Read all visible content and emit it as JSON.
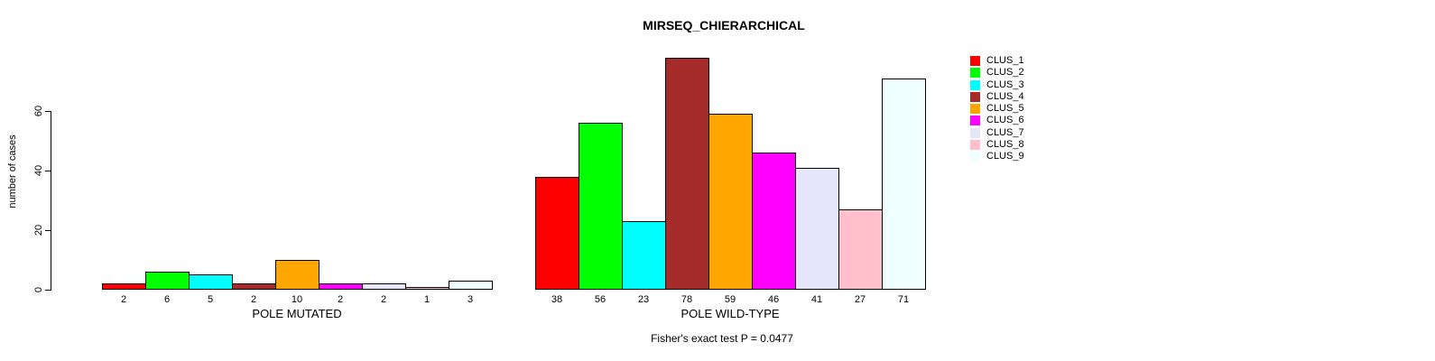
{
  "chart_data": {
    "type": "bar",
    "title": "MIRSEQ_CHIERARCHICAL",
    "ylabel": "number of cases",
    "y_ticks": [
      0,
      20,
      40,
      60
    ],
    "ylim": [
      0,
      78
    ],
    "grid": false,
    "legend_position": "right",
    "bar_border_color": "#000000",
    "series": [
      {
        "name": "CLUS_1",
        "color": "#FF0000"
      },
      {
        "name": "CLUS_2",
        "color": "#00FF00"
      },
      {
        "name": "CLUS_3",
        "color": "#00FFFF"
      },
      {
        "name": "CLUS_4",
        "color": "#A52A2A"
      },
      {
        "name": "CLUS_5",
        "color": "#FFA500"
      },
      {
        "name": "CLUS_6",
        "color": "#FF00FF"
      },
      {
        "name": "CLUS_7",
        "color": "#E6E6FA"
      },
      {
        "name": "CLUS_8",
        "color": "#FFC0CB"
      },
      {
        "name": "CLUS_9",
        "color": "#F0FFFF"
      }
    ],
    "groups": [
      {
        "label": "POLE MUTATED",
        "values": [
          2,
          6,
          5,
          2,
          10,
          2,
          2,
          1,
          3
        ]
      },
      {
        "label": "POLE WILD-TYPE",
        "values": [
          38,
          56,
          23,
          78,
          59,
          46,
          41,
          27,
          71
        ]
      }
    ],
    "annotation": "Fisher's exact test P = 0.0477"
  }
}
